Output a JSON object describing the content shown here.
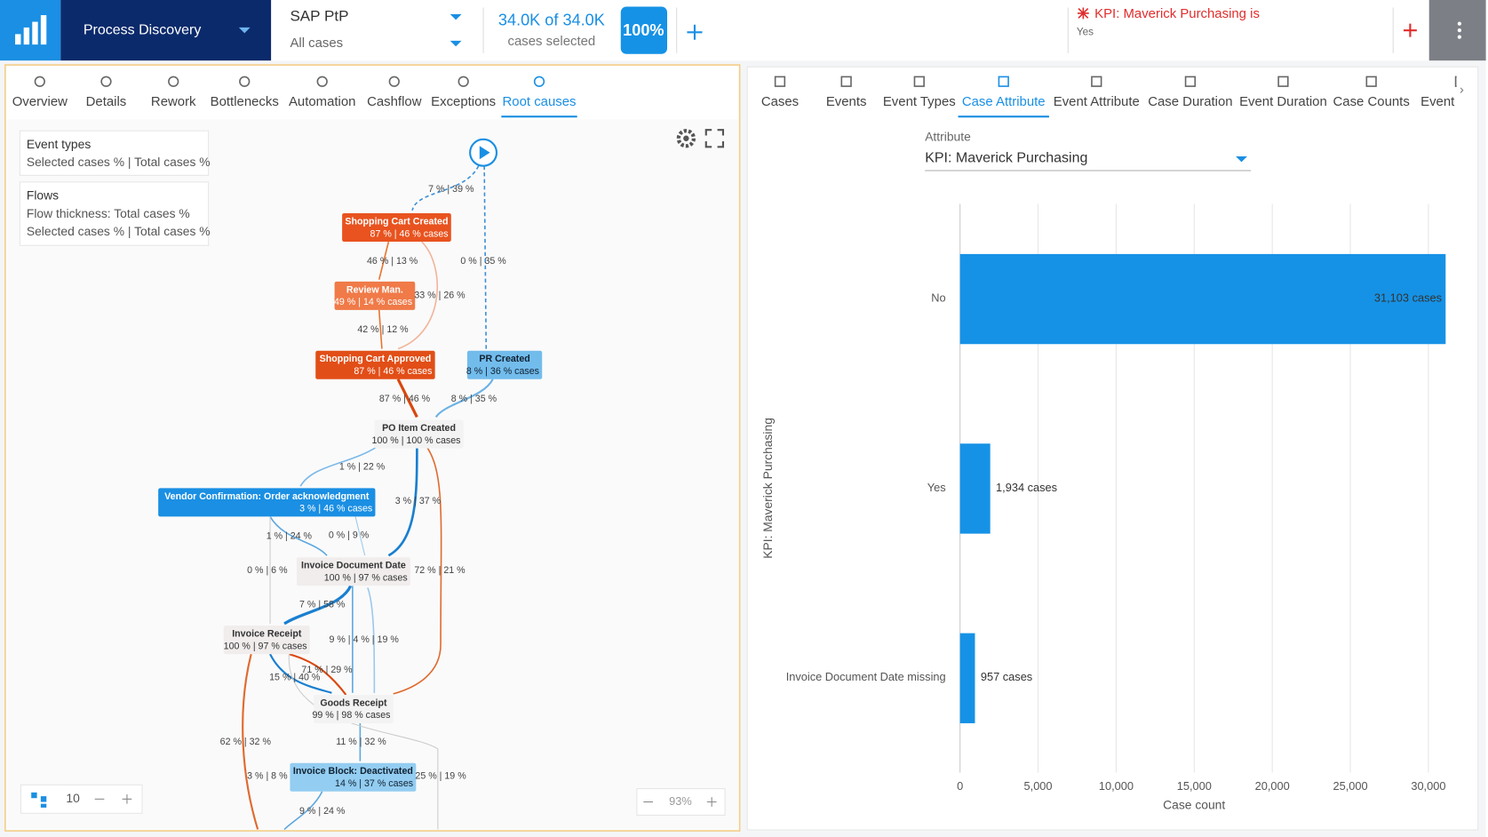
{
  "header": {
    "app_title": "Process Discovery",
    "dataset": "SAP PtP",
    "case_filter": "All cases",
    "selection": "34.0K of 34.0K",
    "selection_sub": "cases selected",
    "percent": "100%",
    "kpi_filter": "KPI: Maverick Purchasing is",
    "kpi_value": "Yes"
  },
  "map_tabs": [
    "Overview",
    "Details",
    "Rework",
    "Bottlenecks",
    "Automation",
    "Cashflow",
    "Exceptions",
    "Root causes"
  ],
  "legend": {
    "event_types_title": "Event types",
    "event_types_text": "Selected cases % | Total cases %",
    "flows_title": "Flows",
    "flows_thickness": "Flow thickness: Total cases %",
    "flows_text": "Selected cases % | Total cases %"
  },
  "nodes": [
    {
      "label": "Shopping Cart Created",
      "stats": "87 % | 46 % cases"
    },
    {
      "label": "Review Man.",
      "stats": "49 % | 14 % cases"
    },
    {
      "label": "Shopping Cart Approved",
      "stats": "87 % | 46 % cases"
    },
    {
      "label": "PR Created",
      "stats": "8 % | 36 % cases"
    },
    {
      "label": "PO Item Created",
      "stats": "100 % | 100 % cases"
    },
    {
      "label": "Vendor Confirmation: Order acknowledgment",
      "stats": "3 % | 46 % cases"
    },
    {
      "label": "Invoice Document Date",
      "stats": "100 % | 97 % cases"
    },
    {
      "label": "Invoice Receipt",
      "stats": "100 % | 97 % cases"
    },
    {
      "label": "Goods Receipt",
      "stats": "99 % | 98 % cases"
    },
    {
      "label": "Invoice Block: Deactivated",
      "stats": "14 % | 37 % cases"
    }
  ],
  "edge_labels": [
    "7 % | 39 %",
    "46 % | 13 %",
    "0 % | 35 %",
    "33 % | 26 %",
    "42 % | 12 %",
    "87 % | 46 %",
    "8 % | 35 %",
    "1 % | 22 %",
    "3 % | 37 %",
    "1 % | 24 %",
    "0 % | 9 %",
    "0 % | 6 %",
    "72 % | 21 %",
    "7 % | 58 %",
    "9 % | 4 % | 19 %",
    "71 % | 29 %",
    "15 % | 40 %",
    "62 % | 32 %",
    "11 % | 32 %",
    "3 % | 8 %",
    "25 % | 19 %",
    "9 % | 24 %"
  ],
  "map_controls": {
    "level": "10",
    "zoom": "93%"
  },
  "attribute_tabs": [
    "Cases",
    "Events",
    "Event Types",
    "Case Attribute",
    "Event Attribute",
    "Case Duration",
    "Event Duration",
    "Case Counts",
    "Event Counts"
  ],
  "attribute": {
    "label": "Attribute",
    "selected": "KPI: Maverick Purchasing"
  },
  "chart_data": {
    "type": "hbar",
    "categories": [
      "No",
      "Yes",
      "Invoice Document Date missing"
    ],
    "values": [
      31103,
      1934,
      957
    ],
    "value_labels": [
      "31,103 cases",
      "1,934 cases",
      "957 cases"
    ],
    "color": "#1592e6",
    "xlabel": "Case count",
    "ylabel": "KPI: Maverick Purchasing",
    "xlim": [
      0,
      31200
    ],
    "xticks": [
      0,
      {
        "value": 5000,
        "label": "5,000"
      },
      {
        "value": 10000,
        "label": "10,000"
      },
      {
        "value": 15000,
        "label": "15,000"
      },
      {
        "value": 20000,
        "label": "20,000"
      },
      {
        "value": 25000,
        "label": "25,000"
      },
      {
        "value": 30000,
        "label": "30,000"
      }
    ],
    "grid": true
  }
}
